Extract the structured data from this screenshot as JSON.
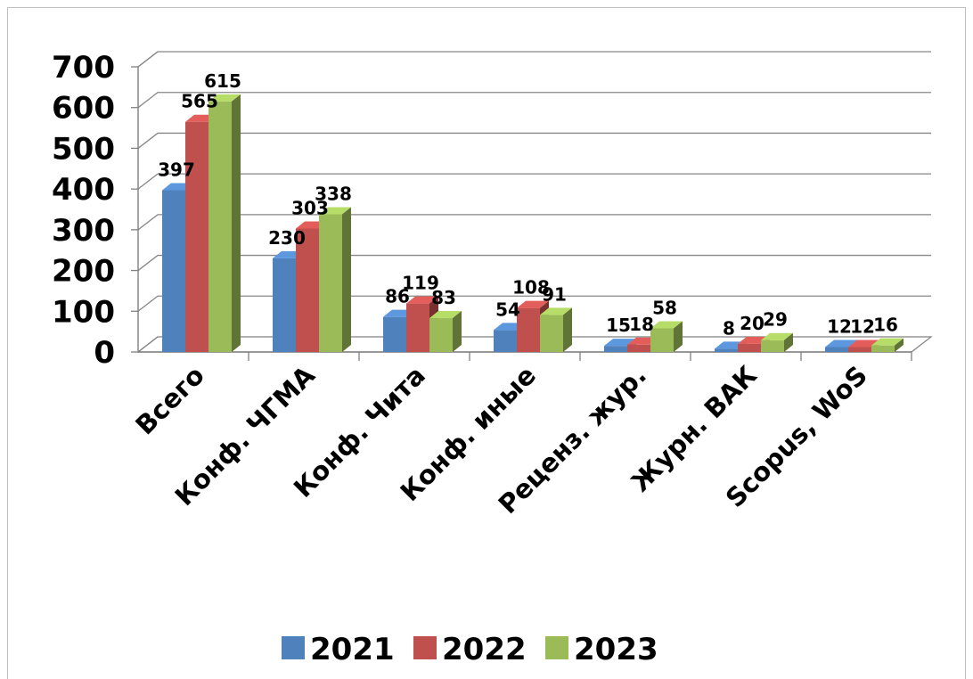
{
  "chart_data": {
    "type": "bar",
    "title": "",
    "xlabel": "",
    "ylabel": "",
    "ylim": [
      0,
      700
    ],
    "yticks": [
      "0",
      "100",
      "200",
      "300",
      "400",
      "500",
      "600",
      "700"
    ],
    "grid": true,
    "legend_position": "bottom",
    "categories": [
      "Всего",
      "Конф. ЧГМА",
      "Конф. Чита",
      "Конф. иные",
      "Реценз. жур.",
      "Журн. ВАК",
      "Scopus, WoS"
    ],
    "series": [
      {
        "name": "2021",
        "color": "#4F81BD",
        "values": [
          397,
          230,
          86,
          54,
          15,
          8,
          12
        ]
      },
      {
        "name": "2022",
        "color": "#C0504D",
        "values": [
          565,
          303,
          119,
          108,
          18,
          20,
          12
        ]
      },
      {
        "name": "2023",
        "color": "#9BBB59",
        "values": [
          615,
          338,
          83,
          91,
          58,
          29,
          16
        ]
      }
    ]
  }
}
